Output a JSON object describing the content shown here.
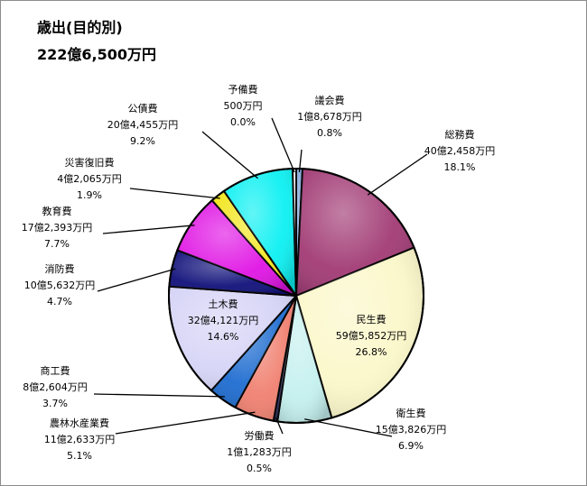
{
  "chart_data": {
    "type": "pie",
    "title": "歳出(目的別)",
    "subtitle": "222億6,500万円",
    "slices": [
      {
        "name": "議会費",
        "amount": "1億8,678万円",
        "percent_label": "0.8%",
        "value": 0.8,
        "color": "#7fa4d8"
      },
      {
        "name": "総務費",
        "amount": "40億2,458万円",
        "percent_label": "18.1%",
        "value": 18.1,
        "color": "#a13a74"
      },
      {
        "name": "民生費",
        "amount": "59億5,852万円",
        "percent_label": "26.8%",
        "value": 26.8,
        "color": "#fbf7c9"
      },
      {
        "name": "衛生費",
        "amount": "15億3,826万円",
        "percent_label": "6.9%",
        "value": 6.9,
        "color": "#c4f0ee"
      },
      {
        "name": "労働費",
        "amount": "1億1,283万円",
        "percent_label": "0.5%",
        "value": 0.5,
        "color": "#2a2a5a"
      },
      {
        "name": "農林水産業費",
        "amount": "11億2,633万円",
        "percent_label": "5.1%",
        "value": 5.1,
        "color": "#f08070"
      },
      {
        "name": "商工費",
        "amount": "8億2,604万円",
        "percent_label": "3.7%",
        "value": 3.7,
        "color": "#1e6cd0"
      },
      {
        "name": "土木費",
        "amount": "32億4,121万円",
        "percent_label": "14.6%",
        "value": 14.6,
        "color": "#d6d4f6"
      },
      {
        "name": "消防費",
        "amount": "10億5,632万円",
        "percent_label": "4.7%",
        "value": 4.7,
        "color": "#10107a"
      },
      {
        "name": "教育費",
        "amount": "17億2,393万円",
        "percent_label": "7.7%",
        "value": 7.7,
        "color": "#e014e4"
      },
      {
        "name": "災害復旧費",
        "amount": "4億2,065万円",
        "percent_label": "1.9%",
        "value": 1.9,
        "color": "#f2e51a"
      },
      {
        "name": "公債費",
        "amount": "20億4,455万円",
        "percent_label": "9.2%",
        "value": 9.2,
        "color": "#0cf0f2"
      },
      {
        "name": "予備費",
        "amount": "500万円",
        "percent_label": "0.0%",
        "value": 0.0,
        "color": "#ffffff"
      }
    ]
  }
}
